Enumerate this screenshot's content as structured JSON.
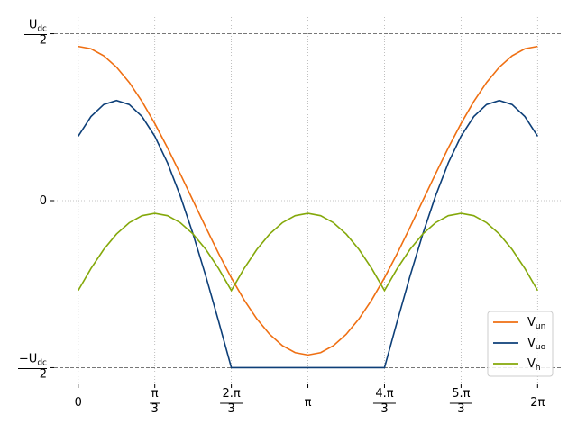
{
  "chart_data": {
    "type": "line",
    "x": [
      0,
      0.1745,
      0.3491,
      0.5236,
      0.6981,
      0.8727,
      1.0472,
      1.2217,
      1.3963,
      1.5708,
      1.7453,
      1.9199,
      2.0944,
      2.2689,
      2.4435,
      2.618,
      2.7925,
      2.9671,
      3.1416,
      3.3161,
      3.4907,
      3.6652,
      3.8397,
      4.0143,
      4.1888,
      4.3633,
      4.5379,
      4.7124,
      4.8869,
      5.0615,
      5.236,
      5.4105,
      5.5851,
      5.7596,
      5.9341,
      6.1087,
      6.2832
    ],
    "series": [
      {
        "name": "Vun",
        "color": "#ef6f12",
        "values": [
          0.462,
          0.455,
          0.434,
          0.4,
          0.354,
          0.297,
          0.231,
          0.158,
          0.08,
          0,
          -0.08,
          -0.158,
          -0.231,
          -0.297,
          -0.354,
          -0.4,
          -0.434,
          -0.455,
          -0.462,
          -0.455,
          -0.434,
          -0.4,
          -0.354,
          -0.297,
          -0.231,
          -0.158,
          -0.08,
          0,
          0.08,
          0.158,
          0.231,
          0.297,
          0.354,
          0.4,
          0.434,
          0.455,
          0.462
        ]
      },
      {
        "name": "Vuo",
        "color": "#0d3f78",
        "values": [
          0.193,
          0.252,
          0.288,
          0.3,
          0.288,
          0.252,
          0.193,
          0.113,
          0.014,
          -0.1,
          -0.226,
          -0.361,
          -0.5,
          -0.5,
          -0.5,
          -0.5,
          -0.5,
          -0.5,
          -0.5,
          -0.5,
          -0.5,
          -0.5,
          -0.5,
          -0.5,
          -0.5,
          -0.361,
          -0.226,
          -0.1,
          0.014,
          0.113,
          0.193,
          0.252,
          0.288,
          0.3,
          0.288,
          0.252,
          0.193
        ]
      },
      {
        "name": "Vh",
        "color": "#84a80a",
        "values": [
          -0.269,
          -0.203,
          -0.146,
          -0.1,
          -0.066,
          -0.045,
          -0.038,
          -0.045,
          -0.066,
          -0.1,
          -0.146,
          -0.203,
          -0.269,
          -0.203,
          -0.146,
          -0.1,
          -0.066,
          -0.045,
          -0.038,
          -0.045,
          -0.066,
          -0.1,
          -0.146,
          -0.203,
          -0.269,
          -0.203,
          -0.146,
          -0.1,
          -0.066,
          -0.045,
          -0.038,
          -0.045,
          -0.066,
          -0.1,
          -0.146,
          -0.203,
          -0.269
        ]
      }
    ],
    "xlim": [
      -0.33,
      6.6
    ],
    "ylim": [
      -0.55,
      0.55
    ],
    "xticks": [
      0,
      {
        "value": 1.0472,
        "label": "π/3"
      },
      {
        "value": 2.0944,
        "label": "2.π/3"
      },
      {
        "value": 3.1416,
        "label": "π"
      },
      {
        "value": 4.1888,
        "label": "4.π/3"
      },
      {
        "value": 5.236,
        "label": "5.π/3"
      },
      {
        "value": 6.2832,
        "label": "2π"
      }
    ],
    "yticks": [
      {
        "value": -0.5,
        "label": "−Udc/2"
      },
      0,
      {
        "value": 0.5,
        "label": "Udc/2"
      }
    ],
    "hlines": [
      -0.5,
      0.5
    ],
    "grid": true,
    "legend": "lower right"
  }
}
